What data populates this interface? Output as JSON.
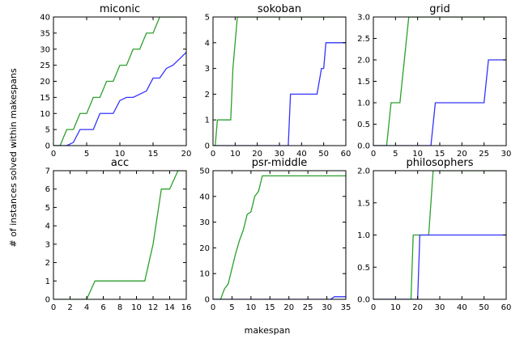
{
  "figure": {
    "xlabel": "makespan",
    "ylabel": "# of instances solved within makespans"
  },
  "chart_data": [
    {
      "type": "line",
      "title": "miconic",
      "xlim": [
        0,
        20
      ],
      "ylim": [
        0,
        40
      ],
      "xticks": [
        0,
        5,
        10,
        15,
        20
      ],
      "yticks": [
        0,
        5,
        10,
        15,
        20,
        25,
        30,
        35,
        40
      ],
      "series": [
        {
          "color": "#2ca02c",
          "points": [
            [
              0,
              0
            ],
            [
              1,
              0
            ],
            [
              2,
              5
            ],
            [
              3,
              5
            ],
            [
              4,
              10
            ],
            [
              5,
              10
            ],
            [
              6,
              15
            ],
            [
              7,
              15
            ],
            [
              8,
              20
            ],
            [
              9,
              20
            ],
            [
              10,
              25
            ],
            [
              11,
              25
            ],
            [
              12,
              30
            ],
            [
              13,
              30
            ],
            [
              14,
              35
            ],
            [
              15,
              35
            ],
            [
              16,
              40
            ],
            [
              20,
              40
            ]
          ]
        },
        {
          "color": "#3333ff",
          "points": [
            [
              0,
              0
            ],
            [
              2,
              0
            ],
            [
              3,
              1
            ],
            [
              4,
              5
            ],
            [
              6,
              5
            ],
            [
              7,
              10
            ],
            [
              9,
              10
            ],
            [
              10,
              14
            ],
            [
              11,
              15
            ],
            [
              12,
              15
            ],
            [
              13,
              16
            ],
            [
              14,
              17
            ],
            [
              15,
              21
            ],
            [
              16,
              21
            ],
            [
              17,
              24
            ],
            [
              18,
              25
            ],
            [
              19,
              27
            ],
            [
              20,
              29
            ]
          ]
        }
      ]
    },
    {
      "type": "line",
      "title": "sokoban",
      "xlim": [
        0,
        60
      ],
      "ylim": [
        0,
        5
      ],
      "xticks": [
        0,
        10,
        20,
        30,
        40,
        50,
        60
      ],
      "yticks": [
        0,
        1,
        2,
        3,
        4,
        5
      ],
      "series": [
        {
          "color": "#2ca02c",
          "points": [
            [
              0,
              0
            ],
            [
              1,
              0
            ],
            [
              2,
              1
            ],
            [
              8,
              1
            ],
            [
              9,
              3
            ],
            [
              11,
              5
            ],
            [
              60,
              5
            ]
          ]
        },
        {
          "color": "#3333ff",
          "points": [
            [
              0,
              0
            ],
            [
              34,
              0
            ],
            [
              35,
              2
            ],
            [
              47,
              2
            ],
            [
              49,
              3
            ],
            [
              50,
              3
            ],
            [
              51,
              4
            ],
            [
              59,
              4
            ],
            [
              60,
              4
            ]
          ]
        }
      ]
    },
    {
      "type": "line",
      "title": "grid",
      "xlim": [
        0,
        30
      ],
      "ylim": [
        0,
        3.0
      ],
      "xticks": [
        0,
        5,
        10,
        15,
        20,
        25,
        30
      ],
      "yticks": [
        0.0,
        0.5,
        1.0,
        1.5,
        2.0,
        2.5,
        3.0
      ],
      "series": [
        {
          "color": "#2ca02c",
          "points": [
            [
              0,
              0
            ],
            [
              3,
              0
            ],
            [
              4,
              1
            ],
            [
              6,
              1
            ],
            [
              7,
              2
            ],
            [
              8,
              3
            ],
            [
              30,
              3
            ]
          ]
        },
        {
          "color": "#3333ff",
          "points": [
            [
              0,
              0
            ],
            [
              13,
              0
            ],
            [
              14,
              1
            ],
            [
              25,
              1
            ],
            [
              26,
              2
            ],
            [
              30,
              2
            ]
          ]
        }
      ]
    },
    {
      "type": "line",
      "title": "acc",
      "xlim": [
        0,
        16
      ],
      "ylim": [
        0,
        7
      ],
      "xticks": [
        0,
        2,
        4,
        6,
        8,
        10,
        12,
        14,
        16
      ],
      "yticks": [
        0,
        1,
        2,
        3,
        4,
        5,
        6,
        7
      ],
      "series": [
        {
          "color": "#2ca02c",
          "points": [
            [
              0,
              0
            ],
            [
              4,
              0
            ],
            [
              5,
              1
            ],
            [
              11,
              1
            ],
            [
              12,
              3
            ],
            [
              13,
              6
            ],
            [
              14,
              6
            ],
            [
              15,
              7
            ],
            [
              16,
              7
            ]
          ]
        }
      ]
    },
    {
      "type": "line",
      "title": "psr-middle",
      "xlim": [
        0,
        35
      ],
      "ylim": [
        0,
        50
      ],
      "xticks": [
        0,
        5,
        10,
        15,
        20,
        25,
        30,
        35
      ],
      "yticks": [
        0,
        10,
        20,
        30,
        40,
        50
      ],
      "series": [
        {
          "color": "#2ca02c",
          "points": [
            [
              0,
              0
            ],
            [
              2,
              0
            ],
            [
              3,
              4
            ],
            [
              4,
              6
            ],
            [
              5,
              12
            ],
            [
              6,
              18
            ],
            [
              7,
              23
            ],
            [
              8,
              27
            ],
            [
              9,
              33
            ],
            [
              10,
              34
            ],
            [
              11,
              40
            ],
            [
              12,
              42
            ],
            [
              13,
              48
            ],
            [
              35,
              48
            ]
          ]
        },
        {
          "color": "#3333ff",
          "points": [
            [
              0,
              0
            ],
            [
              31,
              0
            ],
            [
              32,
              1
            ],
            [
              35,
              1
            ]
          ]
        }
      ]
    },
    {
      "type": "line",
      "title": "philosophers",
      "xlim": [
        0,
        60
      ],
      "ylim": [
        0,
        2.0
      ],
      "xticks": [
        0,
        10,
        20,
        30,
        40,
        50,
        60
      ],
      "yticks": [
        0.0,
        0.5,
        1.0,
        1.5,
        2.0
      ],
      "series": [
        {
          "color": "#2ca02c",
          "points": [
            [
              0,
              0
            ],
            [
              17,
              0
            ],
            [
              18,
              1
            ],
            [
              25,
              1
            ],
            [
              27,
              2
            ],
            [
              60,
              2
            ]
          ]
        },
        {
          "color": "#3333ff",
          "points": [
            [
              0,
              0
            ],
            [
              20,
              0
            ],
            [
              21,
              1
            ],
            [
              60,
              1
            ]
          ]
        }
      ]
    }
  ]
}
